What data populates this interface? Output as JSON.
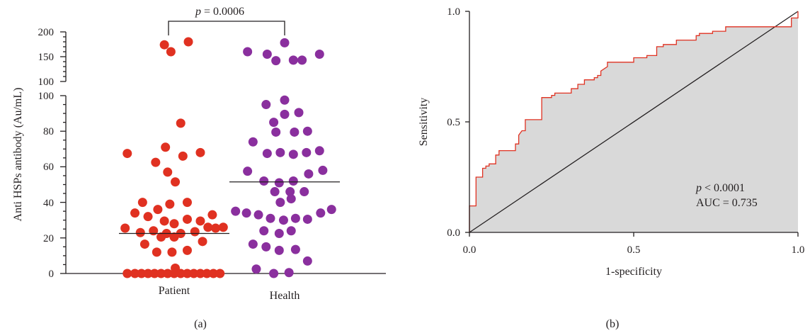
{
  "chart_data": [
    {
      "panel": "(a)",
      "type": "scatter",
      "ylabel": "Anti HSPs antibody (Au/mL)",
      "categories": [
        "Patient",
        "Health"
      ],
      "annotation": {
        "p_symbol": "p",
        "p_text": " = 0.0006"
      },
      "y_axis_lower": {
        "ylim": [
          0,
          100
        ],
        "ticks": [
          "0",
          "20",
          "40",
          "60",
          "80",
          "100"
        ]
      },
      "y_axis_upper": {
        "ylim": [
          100,
          200
        ],
        "ticks": [
          "100",
          "150",
          "200"
        ]
      },
      "colors": {
        "Patient": "#e03121",
        "Health": "#8a2f9e",
        "axis": "#231f20"
      },
      "series": [
        {
          "name": "Patient",
          "median": 22.5,
          "points": [
            [
              -0.45,
              25.5
            ],
            [
              -0.31,
              23
            ],
            [
              -0.19,
              24
            ],
            [
              -0.07,
              22.5
            ],
            [
              0.06,
              22.5
            ],
            [
              0.19,
              23.5
            ],
            [
              0.31,
              26
            ],
            [
              0.38,
              25.5
            ],
            [
              0.45,
              26
            ],
            [
              -0.36,
              34
            ],
            [
              -0.24,
              32
            ],
            [
              -0.15,
              36
            ],
            [
              -0.09,
              29.5
            ],
            [
              0.0,
              28
            ],
            [
              0.12,
              30.5
            ],
            [
              0.24,
              29.5
            ],
            [
              0.35,
              33
            ],
            [
              -0.29,
              40
            ],
            [
              -0.04,
              39
            ],
            [
              0.12,
              40
            ],
            [
              -0.27,
              16.5
            ],
            [
              -0.16,
              12
            ],
            [
              -0.02,
              12
            ],
            [
              0.12,
              13
            ],
            [
              0.26,
              18
            ],
            [
              -0.12,
              20.5
            ],
            [
              0.0,
              20.5
            ],
            [
              -0.43,
              67.5
            ],
            [
              -0.17,
              62.5
            ],
            [
              -0.06,
              57
            ],
            [
              0.01,
              51.5
            ],
            [
              0.08,
              66
            ],
            [
              0.24,
              68
            ],
            [
              -0.08,
              71
            ],
            [
              0.06,
              84.5
            ],
            [
              0.01,
              3
            ],
            [
              -0.43,
              0
            ],
            [
              -0.36,
              0
            ],
            [
              -0.3,
              0
            ],
            [
              -0.24,
              0
            ],
            [
              -0.18,
              0
            ],
            [
              -0.12,
              0
            ],
            [
              -0.06,
              0
            ],
            [
              0.0,
              0
            ],
            [
              0.06,
              0
            ],
            [
              0.12,
              0
            ],
            [
              0.18,
              0
            ],
            [
              0.24,
              0
            ],
            [
              0.3,
              0
            ],
            [
              0.36,
              0
            ],
            [
              0.42,
              0
            ],
            [
              -0.09,
              174
            ],
            [
              -0.03,
              160
            ],
            [
              0.13,
              180
            ]
          ]
        },
        {
          "name": "Health",
          "median": 51.5,
          "points": [
            [
              -0.45,
              35
            ],
            [
              -0.35,
              34
            ],
            [
              -0.24,
              33
            ],
            [
              -0.13,
              31
            ],
            [
              -0.01,
              30
            ],
            [
              0.1,
              31
            ],
            [
              0.21,
              30.5
            ],
            [
              0.33,
              34
            ],
            [
              0.43,
              36
            ],
            [
              -0.29,
              74
            ],
            [
              -0.16,
              67.5
            ],
            [
              -0.04,
              68
            ],
            [
              0.08,
              67
            ],
            [
              0.2,
              68
            ],
            [
              0.32,
              69
            ],
            [
              -0.1,
              85
            ],
            [
              0.0,
              89.5
            ],
            [
              0.13,
              90.5
            ],
            [
              -0.17,
              95
            ],
            [
              0.0,
              97.5
            ],
            [
              -0.08,
              79.5
            ],
            [
              0.09,
              79.5
            ],
            [
              0.21,
              80
            ],
            [
              -0.19,
              52
            ],
            [
              -0.05,
              51
            ],
            [
              0.08,
              52
            ],
            [
              0.22,
              56
            ],
            [
              0.35,
              58
            ],
            [
              -0.34,
              57.5
            ],
            [
              -0.04,
              40
            ],
            [
              0.06,
              42
            ],
            [
              -0.09,
              46
            ],
            [
              0.05,
              46
            ],
            [
              0.18,
              46
            ],
            [
              -0.19,
              24
            ],
            [
              -0.05,
              22.5
            ],
            [
              0.06,
              24
            ],
            [
              -0.29,
              16.5
            ],
            [
              -0.17,
              15
            ],
            [
              -0.05,
              13
            ],
            [
              0.1,
              13.5
            ],
            [
              0.21,
              7
            ],
            [
              -0.26,
              2.5
            ],
            [
              -0.1,
              0
            ],
            [
              0.04,
              0.5
            ],
            [
              -0.34,
              160
            ],
            [
              -0.16,
              155
            ],
            [
              -0.08,
              142
            ],
            [
              0.0,
              178
            ],
            [
              0.08,
              143
            ],
            [
              0.16,
              143
            ],
            [
              0.32,
              155
            ]
          ]
        }
      ]
    },
    {
      "panel": "(b)",
      "type": "line",
      "xlabel": "1-specificity",
      "ylabel": "Sensitivity",
      "xlim": [
        0,
        1
      ],
      "ylim": [
        0,
        1
      ],
      "xticks": [
        "0.0",
        "0.5",
        "1.0"
      ],
      "yticks": [
        "0.0",
        "0.5",
        "1.0"
      ],
      "annotation": {
        "p_symbol": "p",
        "p_text": " < 0.0001",
        "auc_text": "AUC = 0.735"
      },
      "colors": {
        "roc": "#e03121",
        "fill": "#d9d9d9",
        "diagonal": "#231f20"
      },
      "roc_points": [
        [
          0,
          0
        ],
        [
          0,
          0.12
        ],
        [
          0.02,
          0.12
        ],
        [
          0.02,
          0.25
        ],
        [
          0.04,
          0.25
        ],
        [
          0.04,
          0.29
        ],
        [
          0.05,
          0.29
        ],
        [
          0.05,
          0.3
        ],
        [
          0.06,
          0.3
        ],
        [
          0.06,
          0.31
        ],
        [
          0.08,
          0.31
        ],
        [
          0.08,
          0.35
        ],
        [
          0.09,
          0.35
        ],
        [
          0.09,
          0.37
        ],
        [
          0.14,
          0.37
        ],
        [
          0.14,
          0.4
        ],
        [
          0.15,
          0.4
        ],
        [
          0.15,
          0.44
        ],
        [
          0.16,
          0.46
        ],
        [
          0.17,
          0.46
        ],
        [
          0.17,
          0.51
        ],
        [
          0.22,
          0.51
        ],
        [
          0.22,
          0.61
        ],
        [
          0.25,
          0.61
        ],
        [
          0.25,
          0.62
        ],
        [
          0.26,
          0.62
        ],
        [
          0.26,
          0.63
        ],
        [
          0.31,
          0.63
        ],
        [
          0.31,
          0.65
        ],
        [
          0.33,
          0.65
        ],
        [
          0.33,
          0.67
        ],
        [
          0.35,
          0.67
        ],
        [
          0.35,
          0.69
        ],
        [
          0.38,
          0.69
        ],
        [
          0.38,
          0.7
        ],
        [
          0.39,
          0.7
        ],
        [
          0.39,
          0.71
        ],
        [
          0.4,
          0.71
        ],
        [
          0.4,
          0.73
        ],
        [
          0.42,
          0.75
        ],
        [
          0.42,
          0.77
        ],
        [
          0.5,
          0.77
        ],
        [
          0.5,
          0.79
        ],
        [
          0.54,
          0.79
        ],
        [
          0.54,
          0.8
        ],
        [
          0.57,
          0.8
        ],
        [
          0.57,
          0.84
        ],
        [
          0.59,
          0.84
        ],
        [
          0.59,
          0.85
        ],
        [
          0.63,
          0.85
        ],
        [
          0.63,
          0.87
        ],
        [
          0.69,
          0.87
        ],
        [
          0.69,
          0.89
        ],
        [
          0.7,
          0.89
        ],
        [
          0.7,
          0.9
        ],
        [
          0.74,
          0.9
        ],
        [
          0.74,
          0.91
        ],
        [
          0.78,
          0.91
        ],
        [
          0.78,
          0.93
        ],
        [
          0.98,
          0.93
        ],
        [
          0.98,
          0.97
        ],
        [
          1,
          0.97
        ],
        [
          1,
          1
        ]
      ]
    }
  ],
  "captions": {
    "a": "(a)",
    "b": "(b)"
  }
}
